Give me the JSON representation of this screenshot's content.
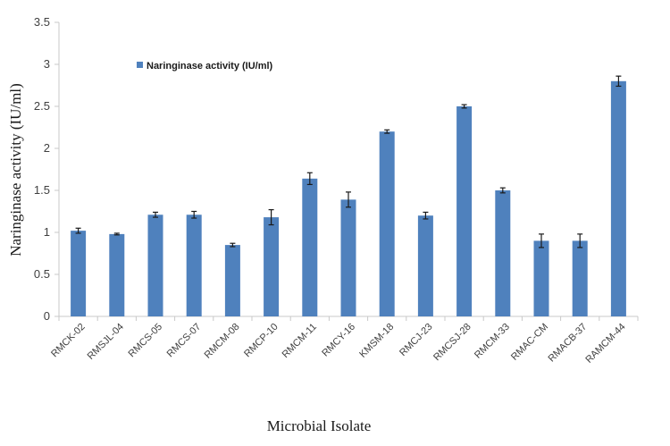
{
  "chart_data": {
    "type": "bar",
    "title": "",
    "xlabel": "Microbial Isolate",
    "ylabel": "Naringinase activity (IU/ml)",
    "ylim": [
      0,
      3.5
    ],
    "yticks": [
      0,
      0.5,
      1,
      1.5,
      2,
      2.5,
      3,
      3.5
    ],
    "ytick_labels": [
      "0",
      "0.5",
      "1",
      "1.5",
      "2",
      "2.5",
      "3",
      "3.5"
    ],
    "grid": false,
    "legend_position": "upper-left-inside",
    "categories": [
      "RMCK-02",
      "RMSJL-04",
      "RMCS-05",
      "RMCS-07",
      "RMCM-08",
      "RMCP-10",
      "RMCM-11",
      "RMCY-16",
      "KMSM-18",
      "RMCJ-23",
      "RMCSJ-28",
      "RMCM-33",
      "RMAC-CM",
      "RMACB-37",
      "RAMCM-44"
    ],
    "series": [
      {
        "name": "Naringinase activity (IU/ml)",
        "color": "#4f81bd",
        "values": [
          1.02,
          0.98,
          1.21,
          1.21,
          0.85,
          1.18,
          1.64,
          1.39,
          2.2,
          1.2,
          2.5,
          1.5,
          0.9,
          0.9,
          2.8
        ],
        "errors": [
          0.03,
          0.01,
          0.03,
          0.04,
          0.02,
          0.09,
          0.07,
          0.09,
          0.02,
          0.04,
          0.02,
          0.03,
          0.08,
          0.08,
          0.06
        ]
      }
    ]
  },
  "legend": {
    "label": "Naringinase activity (IU/ml)"
  },
  "axes": {
    "x_title": "Microbial Isolate",
    "y_title": "Naringinase activity (IU/ml)"
  }
}
